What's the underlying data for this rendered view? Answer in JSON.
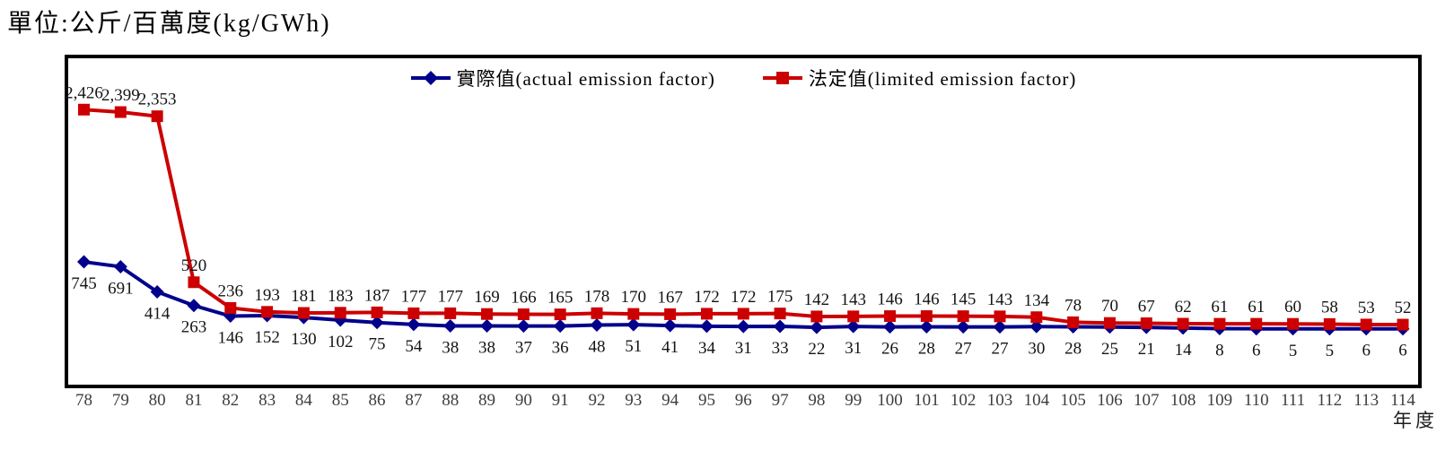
{
  "page": {
    "unit_title": "單位:公斤/百萬度(kg/GWh)"
  },
  "chart_data": {
    "type": "line",
    "title": "單位:公斤/百萬度(kg/GWh)",
    "xlabel": "年度",
    "ylabel": "",
    "ylim": [
      0,
      3000
    ],
    "grid": false,
    "legend_position": "top-center",
    "data_labels": true,
    "categories": [
      78,
      79,
      80,
      81,
      82,
      83,
      84,
      85,
      86,
      87,
      88,
      89,
      90,
      91,
      92,
      93,
      94,
      95,
      96,
      97,
      98,
      99,
      100,
      101,
      102,
      103,
      104,
      105,
      106,
      107,
      108,
      109,
      110,
      111,
      112,
      113,
      114
    ],
    "series": [
      {
        "name": "實際值(actual emission factor)",
        "color": "#00008B",
        "marker": "diamond",
        "label_position": "below",
        "values": [
          745,
          691,
          414,
          263,
          146,
          152,
          130,
          102,
          75,
          54,
          38,
          38,
          37,
          36,
          48,
          51,
          41,
          34,
          31,
          33,
          22,
          31,
          26,
          28,
          27,
          27,
          30,
          28,
          25,
          21,
          14,
          8,
          6,
          5,
          5,
          6,
          6
        ],
        "labels": [
          "745",
          "691",
          "414",
          "263",
          "146",
          "152",
          "130",
          "102",
          "75",
          "54",
          "38",
          "38",
          "37",
          "36",
          "48",
          "51",
          "41",
          "34",
          "31",
          "33",
          "22",
          "31",
          "26",
          "28",
          "27",
          "27",
          "30",
          "28",
          "25",
          "21",
          "14",
          "8",
          "6",
          "5",
          "5",
          "6",
          "6"
        ]
      },
      {
        "name": "法定值(limited emission factor)",
        "color": "#CC0000",
        "marker": "square",
        "label_position": "above",
        "values": [
          2426,
          2399,
          2353,
          520,
          236,
          193,
          181,
          183,
          187,
          177,
          177,
          169,
          166,
          165,
          178,
          170,
          167,
          172,
          172,
          175,
          142,
          143,
          146,
          146,
          145,
          143,
          134,
          78,
          70,
          67,
          62,
          61,
          61,
          60,
          58,
          53,
          52
        ],
        "labels": [
          "2,426",
          "2,399",
          "2,353",
          "520",
          "236",
          "193",
          "181",
          "183",
          "187",
          "177",
          "177",
          "169",
          "166",
          "165",
          "178",
          "170",
          "167",
          "172",
          "172",
          "175",
          "142",
          "143",
          "146",
          "146",
          "145",
          "143",
          "134",
          "78",
          "70",
          "67",
          "62",
          "61",
          "61",
          "60",
          "58",
          "53",
          "52"
        ]
      }
    ]
  }
}
